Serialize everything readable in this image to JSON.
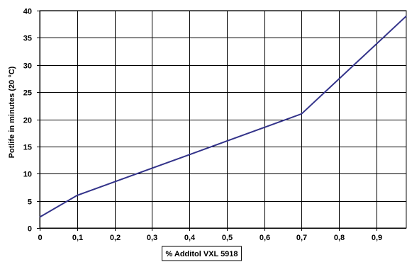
{
  "chart_data": {
    "type": "line",
    "title": "",
    "xlabel": "% Additol VXL 5918",
    "ylabel": "Potlife in minutes (20 °C)",
    "xlim": [
      0,
      0.98
    ],
    "ylim": [
      0,
      40
    ],
    "x_ticks": [
      "0",
      "0,1",
      "0,2",
      "0,3",
      "0,4",
      "0,5",
      "0,6",
      "0,7",
      "0,8",
      "0,9"
    ],
    "x_tick_values": [
      0,
      0.1,
      0.2,
      0.3,
      0.4,
      0.5,
      0.6,
      0.7,
      0.8,
      0.9
    ],
    "y_ticks": [
      "0",
      "5",
      "10",
      "15",
      "20",
      "25",
      "30",
      "35",
      "40"
    ],
    "y_tick_values": [
      0,
      5,
      10,
      15,
      20,
      25,
      30,
      35,
      40
    ],
    "grid": true,
    "legend": "none",
    "series": [
      {
        "color": "#33338a",
        "x": [
          0,
          0.1,
          0.3,
          0.5,
          0.7,
          0.98
        ],
        "y": [
          2,
          6,
          11,
          16,
          21,
          39
        ]
      }
    ]
  }
}
